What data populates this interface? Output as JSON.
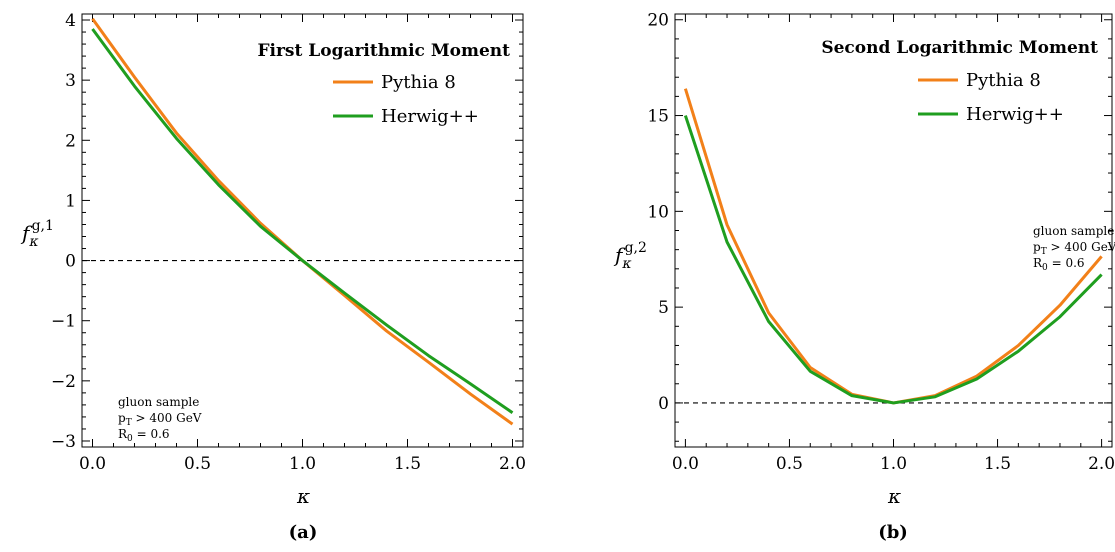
{
  "chart_data": [
    {
      "type": "line",
      "title": "First Logarithmic Moment",
      "xlabel": "κ",
      "ylabel_main": "f",
      "ylabel_sub": "κ",
      "ylabel_sup": "g,1",
      "caption": "(a)",
      "xlim": [
        -0.05,
        2.05
      ],
      "ylim": [
        -3.1,
        4.1
      ],
      "xticks": [
        0.0,
        0.5,
        1.0,
        1.5,
        2.0
      ],
      "xtick_labels": [
        "0.0",
        "0.5",
        "1.0",
        "1.5",
        "2.0"
      ],
      "yticks": [
        -3,
        -2,
        -1,
        0,
        1,
        2,
        3,
        4
      ],
      "ytick_labels": [
        "−3",
        "−2",
        "−1",
        "0",
        "1",
        "2",
        "3",
        "4"
      ],
      "reference_line": 0,
      "legend_position": "top-right",
      "annotation": [
        "gluon sample",
        "p",
        "T",
        " > 400 GeV",
        "R",
        "0",
        " = 0.6"
      ],
      "x": [
        0.0,
        0.2,
        0.4,
        0.6,
        0.8,
        1.0,
        1.2,
        1.4,
        1.6,
        1.8,
        2.0
      ],
      "series": [
        {
          "name": "Pythia 8",
          "color": "#f28019",
          "values": [
            4.02,
            3.05,
            2.12,
            1.33,
            0.62,
            0.0,
            -0.58,
            -1.17,
            -1.69,
            -2.22,
            -2.72
          ]
        },
        {
          "name": "Herwig++",
          "color": "#1f9e1f",
          "values": [
            3.85,
            2.9,
            2.03,
            1.26,
            0.57,
            0.0,
            -0.54,
            -1.07,
            -1.58,
            -2.05,
            -2.53
          ]
        }
      ]
    },
    {
      "type": "line",
      "title": "Second Logarithmic Moment",
      "xlabel": "κ",
      "ylabel_main": "f",
      "ylabel_sub": "κ",
      "ylabel_sup": "g,2",
      "caption": "(b)",
      "xlim": [
        -0.05,
        2.05
      ],
      "ylim": [
        -2.3,
        20.3
      ],
      "xticks": [
        0.0,
        0.5,
        1.0,
        1.5,
        2.0
      ],
      "xtick_labels": [
        "0.0",
        "0.5",
        "1.0",
        "1.5",
        "2.0"
      ],
      "yticks": [
        0,
        5,
        10,
        15,
        20
      ],
      "ytick_labels": [
        "0",
        "5",
        "10",
        "15",
        "20"
      ],
      "reference_line": 0,
      "legend_position": "top-right",
      "annotation": [
        "gluon sample",
        "p",
        "T",
        " > 400 GeV",
        "R",
        "0",
        " = 0.6"
      ],
      "x": [
        0.0,
        0.2,
        0.4,
        0.6,
        0.8,
        1.0,
        1.2,
        1.4,
        1.6,
        1.8,
        2.0
      ],
      "series": [
        {
          "name": "Pythia 8",
          "color": "#f28019",
          "values": [
            16.4,
            9.3,
            4.7,
            1.85,
            0.45,
            0.0,
            0.38,
            1.4,
            3.0,
            5.1,
            7.65
          ]
        },
        {
          "name": "Herwig++",
          "color": "#1f9e1f",
          "values": [
            15.0,
            8.4,
            4.25,
            1.65,
            0.38,
            0.0,
            0.32,
            1.25,
            2.7,
            4.5,
            6.7
          ]
        }
      ]
    }
  ]
}
